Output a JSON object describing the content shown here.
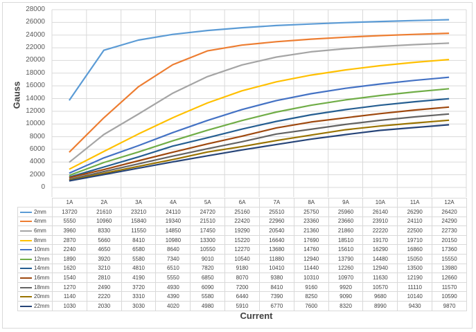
{
  "chart_data": {
    "type": "line",
    "title": "",
    "xlabel": "Current",
    "ylabel": "Gauss",
    "ylim": [
      0,
      28000
    ],
    "yticks": [
      0,
      2000,
      4000,
      6000,
      8000,
      10000,
      12000,
      14000,
      16000,
      18000,
      20000,
      22000,
      24000,
      26000,
      28000
    ],
    "grid": "vertical and horizontal",
    "legend": "data table below chart",
    "categories": [
      "1A",
      "2A",
      "3A",
      "4A",
      "5A",
      "6A",
      "7A",
      "8A",
      "9A",
      "10A",
      "11A",
      "12A"
    ],
    "series": [
      {
        "name": "2mm",
        "color": "#5b9bd5",
        "values": [
          13720,
          21610,
          23210,
          24110,
          24720,
          25160,
          25510,
          25750,
          25960,
          26140,
          26290,
          26420
        ]
      },
      {
        "name": "4mm",
        "color": "#ed7d31",
        "values": [
          5550,
          10960,
          15840,
          19340,
          21510,
          22420,
          22960,
          23360,
          23660,
          23910,
          24110,
          24290
        ]
      },
      {
        "name": "6mm",
        "color": "#a5a5a5",
        "values": [
          3960,
          8330,
          11550,
          14850,
          17450,
          19290,
          20540,
          21360,
          21860,
          22220,
          22500,
          22730
        ]
      },
      {
        "name": "8mm",
        "color": "#ffc000",
        "values": [
          2870,
          5660,
          8410,
          10980,
          13300,
          15220,
          16640,
          17690,
          18510,
          19170,
          19710,
          20150
        ]
      },
      {
        "name": "10mm",
        "color": "#4472c4",
        "values": [
          2240,
          4650,
          6580,
          8640,
          10550,
          12270,
          13680,
          14760,
          15610,
          16290,
          16860,
          17360
        ]
      },
      {
        "name": "12mm",
        "color": "#70ad47",
        "values": [
          1890,
          3920,
          5580,
          7340,
          9010,
          10540,
          11880,
          12940,
          13790,
          14480,
          15050,
          15550
        ]
      },
      {
        "name": "14mm",
        "color": "#255e91",
        "values": [
          1620,
          3210,
          4810,
          6510,
          7820,
          9180,
          10410,
          11440,
          12260,
          12940,
          13500,
          13980
        ]
      },
      {
        "name": "16mm",
        "color": "#9e480e",
        "values": [
          1540,
          2810,
          4190,
          5550,
          6850,
          8070,
          9380,
          10310,
          10970,
          11630,
          12190,
          12660
        ]
      },
      {
        "name": "18mm",
        "color": "#636363",
        "values": [
          1270,
          2490,
          3720,
          4930,
          6090,
          7200,
          8410,
          9160,
          9920,
          10570,
          11110,
          11570
        ]
      },
      {
        "name": "20mm",
        "color": "#997300",
        "values": [
          1140,
          2220,
          3310,
          4390,
          5580,
          6440,
          7390,
          8250,
          9090,
          9680,
          10140,
          10590
        ]
      },
      {
        "name": "22mm",
        "color": "#264478",
        "values": [
          1030,
          2030,
          3030,
          4020,
          4980,
          5910,
          6770,
          7600,
          8320,
          8990,
          9430,
          9870
        ]
      }
    ]
  }
}
